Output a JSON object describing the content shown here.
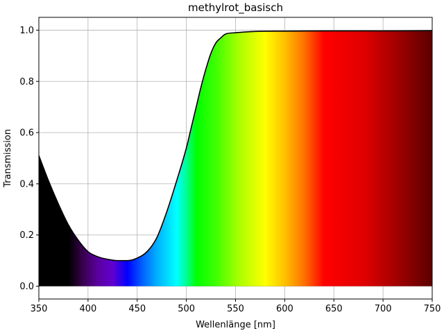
{
  "chart_data": {
    "type": "area",
    "title": "methylrot_basisch",
    "xlabel": "Wellenlänge [nm]",
    "ylabel": "Transmission",
    "xlim": [
      350,
      750
    ],
    "ylim": [
      -0.05,
      1.05
    ],
    "xticks": [
      350,
      400,
      450,
      500,
      550,
      600,
      650,
      700,
      750
    ],
    "xtick_labels": [
      "350",
      "400",
      "450",
      "500",
      "550",
      "600",
      "650",
      "700",
      "750"
    ],
    "yticks": [
      0.0,
      0.2,
      0.4,
      0.6,
      0.8,
      1.0
    ],
    "ytick_labels": [
      "0.0",
      "0.2",
      "0.4",
      "0.6",
      "0.8",
      "1.0"
    ],
    "grid": true,
    "fill": "visible spectrum gradient under curve",
    "line_color": "#000000",
    "series": [
      {
        "x": [
          350,
          360,
          370,
          380,
          390,
          400,
          410,
          420,
          430,
          440,
          450,
          460,
          470,
          480,
          490,
          500,
          505,
          510,
          515,
          520,
          525,
          530,
          535,
          540,
          550,
          560,
          570,
          600,
          650,
          700,
          750
        ],
        "y": [
          0.51,
          0.41,
          0.32,
          0.24,
          0.18,
          0.135,
          0.115,
          0.105,
          0.1,
          0.1,
          0.11,
          0.135,
          0.19,
          0.29,
          0.41,
          0.54,
          0.62,
          0.7,
          0.78,
          0.85,
          0.91,
          0.95,
          0.97,
          0.985,
          0.99,
          0.993,
          0.995,
          0.996,
          0.997,
          0.997,
          0.998
        ]
      }
    ]
  }
}
